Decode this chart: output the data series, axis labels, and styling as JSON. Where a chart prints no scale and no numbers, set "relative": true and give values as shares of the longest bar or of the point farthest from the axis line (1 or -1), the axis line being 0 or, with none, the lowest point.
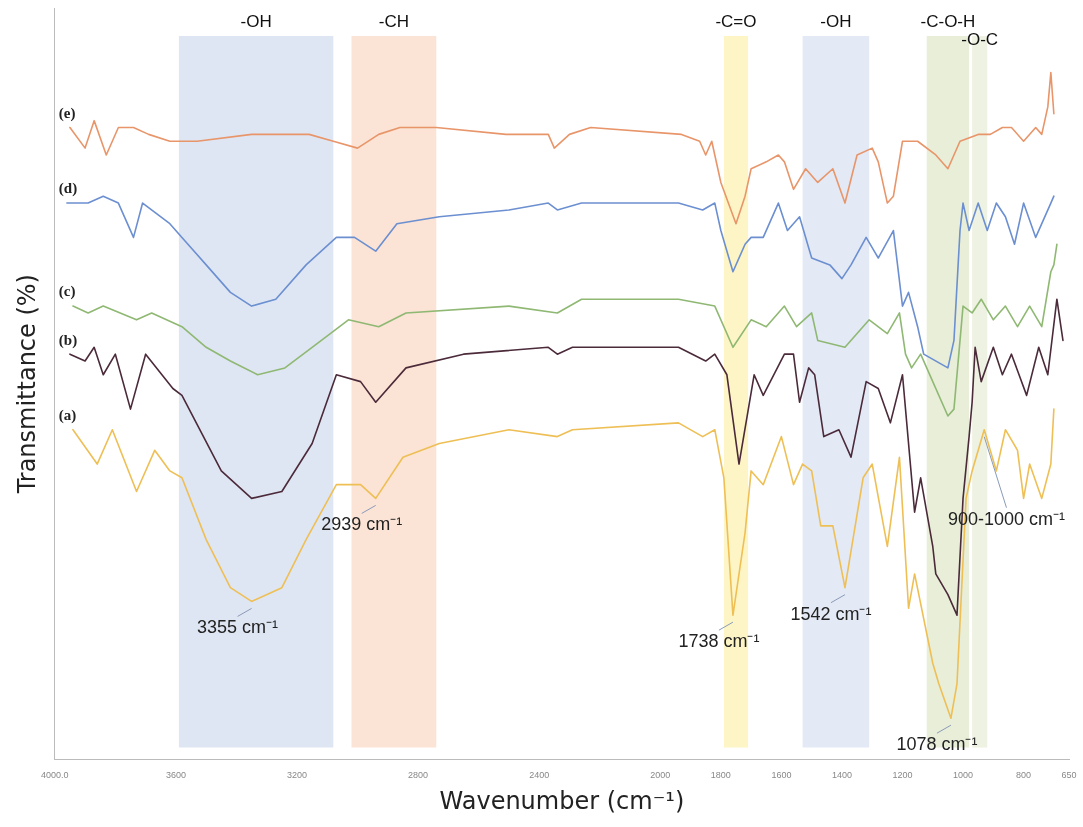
{
  "chart_data": {
    "type": "line",
    "xlabel": "Wavenumber (cm⁻¹)",
    "ylabel": "Transmittance (%)",
    "relative": true,
    "grid": false,
    "legend": false,
    "marker": "none",
    "line_style": "solid",
    "xlim": [
      4000,
      650
    ],
    "xticks": [
      {
        "value": 4000,
        "label": "4000.0"
      },
      3600,
      3200,
      2800,
      2400,
      2000,
      1800,
      1600,
      1400,
      1200,
      1000,
      800,
      650
    ],
    "bands": [
      {
        "axis": "x",
        "from": 3590,
        "to": 3080,
        "label": "-OH",
        "color": "#dfe6f3"
      },
      {
        "axis": "x",
        "from": 3020,
        "to": 2740,
        "label": "-CH",
        "color": "#fbe3d5"
      },
      {
        "axis": "x",
        "from": 1790,
        "to": 1710,
        "label": "-C=O",
        "color": "#fdf5c6"
      },
      {
        "axis": "x",
        "from": 1530,
        "to": 1310,
        "label": "-OH",
        "color": "#e3e9f5"
      },
      {
        "axis": "x",
        "from": 1120,
        "to": 980,
        "label": "-C-O-H",
        "color": "#e8eed8"
      },
      {
        "axis": "x",
        "from": 970,
        "to": 920,
        "label": "-O-C",
        "color": "#eef2e2"
      }
    ],
    "annotations": [
      {
        "text": "3355 cm⁻¹",
        "x": 3350,
        "y": 0.23
      },
      {
        "text": "2939 cm⁻¹",
        "x": 2940,
        "y": 0.38
      },
      {
        "text": "1738 cm⁻¹",
        "x": 1760,
        "y": 0.21
      },
      {
        "text": "1542 cm⁻¹",
        "x": 1390,
        "y": 0.25
      },
      {
        "text": "1078 cm⁻¹",
        "x": 1040,
        "y": 0.06
      },
      {
        "text": "900-1000 cm⁻¹",
        "x": 930,
        "y": 0.48
      }
    ],
    "series": [
      {
        "name": "(e)",
        "color": "#e8956a",
        "x": [
          3950,
          3900,
          3870,
          3830,
          3790,
          3740,
          3690,
          3620,
          3530,
          3350,
          3160,
          3080,
          3000,
          2930,
          2860,
          2740,
          2510,
          2370,
          2350,
          2300,
          2230,
          1930,
          1870,
          1850,
          1830,
          1800,
          1750,
          1720,
          1700,
          1650,
          1610,
          1590,
          1560,
          1520,
          1480,
          1430,
          1390,
          1350,
          1300,
          1280,
          1250,
          1230,
          1200,
          1150,
          1090,
          1050,
          1010,
          950,
          910,
          870,
          840,
          800,
          760,
          740,
          720,
          710,
          700
        ],
        "values": [
          0.92,
          0.89,
          0.93,
          0.88,
          0.92,
          0.92,
          0.91,
          0.9,
          0.9,
          0.91,
          0.91,
          0.9,
          0.89,
          0.91,
          0.92,
          0.92,
          0.91,
          0.91,
          0.89,
          0.91,
          0.92,
          0.91,
          0.9,
          0.88,
          0.9,
          0.84,
          0.78,
          0.82,
          0.86,
          0.87,
          0.88,
          0.87,
          0.83,
          0.86,
          0.84,
          0.86,
          0.81,
          0.88,
          0.89,
          0.87,
          0.81,
          0.82,
          0.9,
          0.9,
          0.88,
          0.86,
          0.9,
          0.91,
          0.91,
          0.92,
          0.92,
          0.9,
          0.92,
          0.91,
          0.95,
          1,
          0.94
        ]
      },
      {
        "name": "(d)",
        "color": "#6b8fd0",
        "x": [
          3960,
          3890,
          3840,
          3790,
          3740,
          3710,
          3620,
          3580,
          3500,
          3420,
          3350,
          3270,
          3170,
          3070,
          3010,
          2940,
          2870,
          2730,
          2500,
          2370,
          2340,
          2260,
          1940,
          1860,
          1820,
          1800,
          1760,
          1720,
          1700,
          1660,
          1610,
          1580,
          1540,
          1500,
          1440,
          1400,
          1370,
          1320,
          1280,
          1230,
          1200,
          1180,
          1150,
          1130,
          1050,
          1030,
          1010,
          1000,
          980,
          950,
          920,
          890,
          860,
          830,
          800,
          760,
          710,
          700
        ],
        "values": [
          0.81,
          0.81,
          0.82,
          0.81,
          0.76,
          0.81,
          0.78,
          0.76,
          0.72,
          0.68,
          0.66,
          0.67,
          0.72,
          0.76,
          0.76,
          0.74,
          0.78,
          0.79,
          0.8,
          0.81,
          0.8,
          0.81,
          0.81,
          0.8,
          0.81,
          0.77,
          0.71,
          0.75,
          0.76,
          0.76,
          0.81,
          0.77,
          0.79,
          0.73,
          0.72,
          0.7,
          0.72,
          0.76,
          0.73,
          0.77,
          0.66,
          0.68,
          0.63,
          0.59,
          0.57,
          0.61,
          0.77,
          0.81,
          0.77,
          0.81,
          0.77,
          0.81,
          0.79,
          0.75,
          0.81,
          0.76,
          0.81,
          0.82
        ]
      },
      {
        "name": "(c)",
        "color": "#8fb873",
        "x": [
          3940,
          3890,
          3840,
          3730,
          3680,
          3580,
          3500,
          3420,
          3330,
          3240,
          3150,
          3030,
          2930,
          2840,
          2500,
          2340,
          2260,
          1940,
          1820,
          1760,
          1700,
          1650,
          1590,
          1550,
          1500,
          1480,
          1390,
          1310,
          1250,
          1210,
          1190,
          1170,
          1140,
          1050,
          1030,
          1000,
          970,
          940,
          900,
          860,
          820,
          780,
          740,
          710,
          700,
          690
        ],
        "values": [
          0.66,
          0.65,
          0.66,
          0.64,
          0.65,
          0.63,
          0.6,
          0.58,
          0.56,
          0.57,
          0.6,
          0.64,
          0.63,
          0.65,
          0.66,
          0.65,
          0.67,
          0.67,
          0.66,
          0.6,
          0.64,
          0.63,
          0.66,
          0.63,
          0.65,
          0.61,
          0.6,
          0.64,
          0.62,
          0.65,
          0.59,
          0.57,
          0.59,
          0.5,
          0.51,
          0.66,
          0.65,
          0.67,
          0.64,
          0.66,
          0.63,
          0.66,
          0.63,
          0.71,
          0.72,
          0.75
        ]
      },
      {
        "name": "(b)",
        "color": "#4b2a3a",
        "x": [
          3950,
          3900,
          3870,
          3840,
          3800,
          3750,
          3700,
          3610,
          3580,
          3450,
          3350,
          3250,
          3150,
          3070,
          2990,
          2940,
          2840,
          2650,
          2370,
          2340,
          2290,
          1940,
          1850,
          1820,
          1780,
          1740,
          1690,
          1660,
          1590,
          1560,
          1540,
          1510,
          1490,
          1460,
          1410,
          1370,
          1320,
          1280,
          1240,
          1200,
          1160,
          1140,
          1100,
          1090,
          1050,
          1020,
          1000,
          980,
          970,
          960,
          940,
          900,
          870,
          840,
          790,
          750,
          720,
          690,
          670
        ],
        "values": [
          0.59,
          0.58,
          0.6,
          0.56,
          0.59,
          0.51,
          0.59,
          0.54,
          0.53,
          0.42,
          0.38,
          0.39,
          0.46,
          0.56,
          0.55,
          0.52,
          0.57,
          0.59,
          0.6,
          0.59,
          0.6,
          0.6,
          0.58,
          0.59,
          0.56,
          0.43,
          0.56,
          0.53,
          0.59,
          0.59,
          0.52,
          0.57,
          0.56,
          0.47,
          0.48,
          0.44,
          0.55,
          0.54,
          0.49,
          0.56,
          0.36,
          0.41,
          0.31,
          0.27,
          0.24,
          0.21,
          0.38,
          0.47,
          0.52,
          0.6,
          0.55,
          0.6,
          0.56,
          0.59,
          0.53,
          0.6,
          0.56,
          0.67,
          0.61
        ]
      },
      {
        "name": "(a)",
        "color": "#eebf55",
        "x": [
          3940,
          3860,
          3810,
          3730,
          3670,
          3620,
          3580,
          3500,
          3420,
          3350,
          3250,
          3170,
          3070,
          2990,
          2940,
          2850,
          2730,
          2500,
          2340,
          2290,
          1940,
          1860,
          1820,
          1790,
          1760,
          1720,
          1700,
          1660,
          1600,
          1560,
          1530,
          1500,
          1470,
          1430,
          1390,
          1330,
          1300,
          1250,
          1210,
          1180,
          1160,
          1100,
          1080,
          1040,
          1020,
          990,
          970,
          930,
          890,
          860,
          820,
          800,
          780,
          740,
          710,
          700
        ],
        "values": [
          0.48,
          0.43,
          0.48,
          0.39,
          0.45,
          0.42,
          0.41,
          0.32,
          0.25,
          0.23,
          0.25,
          0.32,
          0.4,
          0.4,
          0.38,
          0.44,
          0.46,
          0.48,
          0.47,
          0.48,
          0.49,
          0.47,
          0.48,
          0.41,
          0.21,
          0.33,
          0.42,
          0.4,
          0.47,
          0.4,
          0.43,
          0.42,
          0.34,
          0.34,
          0.25,
          0.41,
          0.43,
          0.31,
          0.44,
          0.22,
          0.27,
          0.14,
          0.11,
          0.06,
          0.11,
          0.38,
          0.42,
          0.48,
          0.42,
          0.48,
          0.45,
          0.38,
          0.43,
          0.38,
          0.43,
          0.51
        ]
      }
    ]
  }
}
